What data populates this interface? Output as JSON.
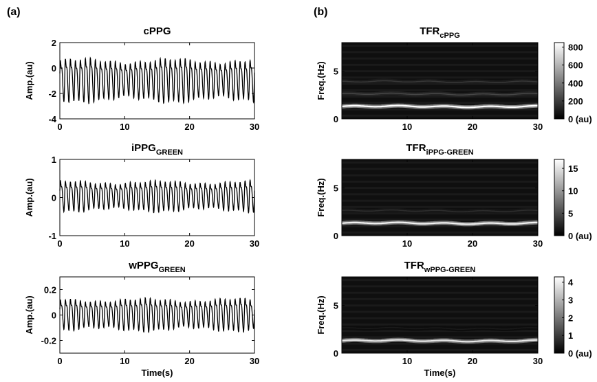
{
  "panels": {
    "a": "(a)",
    "b": "(b)"
  },
  "time_label": "Time(s)",
  "amp_label": "Amp.(au)",
  "freq_label": "Freq.(Hz)",
  "chart_data": [
    {
      "type": "line",
      "title": "cPPG",
      "subtitle": "",
      "xlabel": "",
      "ylabel": "Amp.(au)",
      "xlim": [
        0,
        30
      ],
      "ylim": [
        -4,
        2
      ],
      "xticks": [
        0,
        10,
        20,
        30
      ],
      "yticks": [
        2,
        0,
        -2,
        -4
      ],
      "pulse_rate_hz": 1.3,
      "peak": 1.0,
      "trough": -2.6
    },
    {
      "type": "line",
      "title": "iPPG",
      "subtitle": "GREEN",
      "xlabel": "",
      "ylabel": "Amp.(au)",
      "xlim": [
        0,
        30
      ],
      "ylim": [
        -1,
        1
      ],
      "xticks": [
        0,
        10,
        20,
        30
      ],
      "yticks": [
        1,
        0,
        -1
      ],
      "pulse_rate_hz": 1.3,
      "peak": 0.5,
      "trough": -0.35
    },
    {
      "type": "line",
      "title": "wPPG",
      "subtitle": "GREEN",
      "xlabel": "Time(s)",
      "ylabel": "Amp.(au)",
      "xlim": [
        0,
        30
      ],
      "ylim": [
        -0.3,
        0.3
      ],
      "xticks": [
        0,
        10,
        20,
        30
      ],
      "yticks": [
        0.2,
        0,
        -0.2
      ],
      "pulse_rate_hz": 1.3,
      "peak": 0.15,
      "trough": -0.12
    },
    {
      "type": "heatmap",
      "title": "TFR",
      "subtitle": "cPPG",
      "xlabel": "",
      "ylabel": "Freq.(Hz)",
      "xlim": [
        0,
        30
      ],
      "ylim": [
        0,
        8
      ],
      "xticks": [
        10,
        20,
        30
      ],
      "yticks": [
        0,
        5
      ],
      "colorbar": {
        "min": 0,
        "max": 850,
        "ticks": [
          800,
          600,
          400,
          200,
          0
        ],
        "unit_label": "0 (au)"
      },
      "bands": [
        {
          "freq_hz": 1.3,
          "intensity": 1.0
        },
        {
          "freq_hz": 2.6,
          "intensity": 0.28
        },
        {
          "freq_hz": 3.9,
          "intensity": 0.22
        }
      ]
    },
    {
      "type": "heatmap",
      "title": "TFR",
      "subtitle": "iPPG-GREEN",
      "xlabel": "",
      "ylabel": "Freq.(Hz)",
      "xlim": [
        0,
        30
      ],
      "ylim": [
        0,
        8
      ],
      "xticks": [
        10,
        20,
        30
      ],
      "yticks": [
        0,
        5
      ],
      "colorbar": {
        "min": 0,
        "max": 17,
        "ticks": [
          15,
          10,
          5,
          0
        ],
        "unit_label": "0 (au)"
      },
      "bands": [
        {
          "freq_hz": 1.3,
          "intensity": 0.95
        },
        {
          "freq_hz": 2.6,
          "intensity": 0.18
        }
      ]
    },
    {
      "type": "heatmap",
      "title": "TFR",
      "subtitle": "wPPG-GREEN",
      "xlabel": "Time(s)",
      "ylabel": "Freq.(Hz)",
      "xlim": [
        0,
        30
      ],
      "ylim": [
        0,
        8
      ],
      "xticks": [
        10,
        20,
        30
      ],
      "yticks": [
        0,
        5
      ],
      "colorbar": {
        "min": 0,
        "max": 4.3,
        "ticks": [
          4,
          3,
          2,
          1,
          0
        ],
        "unit_label": "0 (au)"
      },
      "bands": [
        {
          "freq_hz": 1.3,
          "intensity": 0.9
        },
        {
          "freq_hz": 2.6,
          "intensity": 0.1
        }
      ]
    }
  ]
}
